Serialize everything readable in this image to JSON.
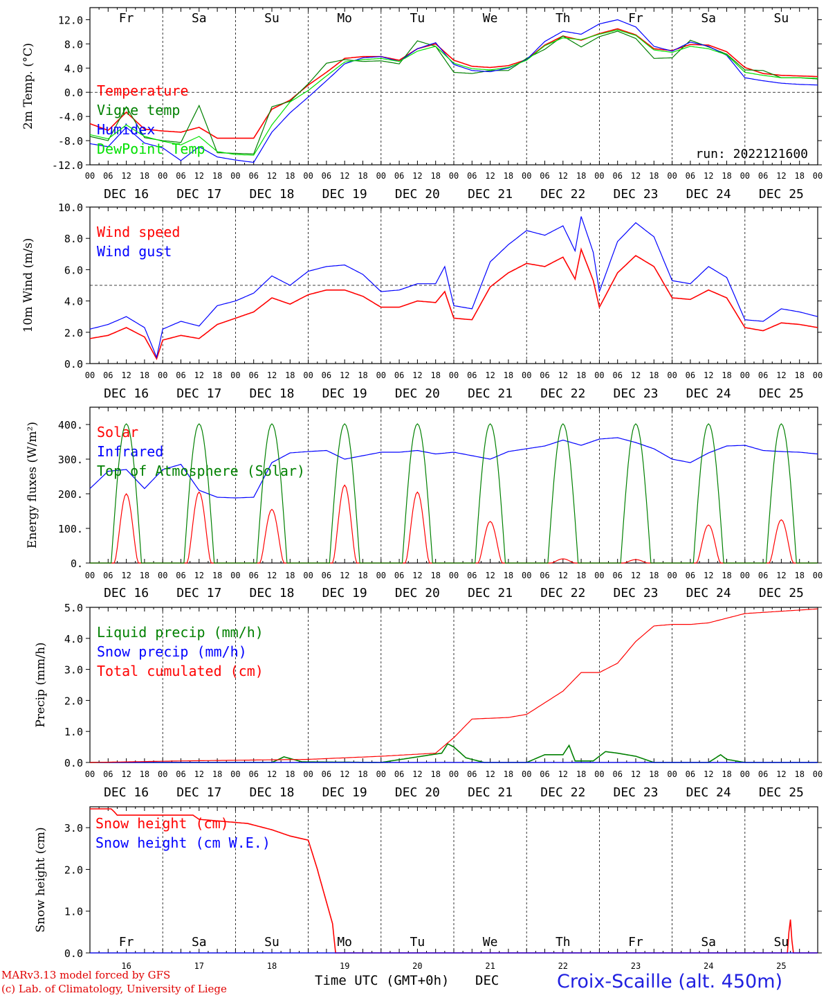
{
  "run_label": "run: 2022121600",
  "weekdays": [
    {
      "label": "Fr",
      "color": "#000000"
    },
    {
      "label": "Sa",
      "color": "#ff0000"
    },
    {
      "label": "Su",
      "color": "#ff0000"
    },
    {
      "label": "Mo",
      "color": "#000000"
    },
    {
      "label": "Tu",
      "color": "#000000"
    },
    {
      "label": "We",
      "color": "#000000"
    },
    {
      "label": "Th",
      "color": "#000000"
    },
    {
      "label": "Fr",
      "color": "#000000"
    },
    {
      "label": "Sa",
      "color": "#ff0000"
    },
    {
      "label": "Su",
      "color": "#ff0000"
    }
  ],
  "day_labels": [
    "DEC 16",
    "DEC 17",
    "DEC 18",
    "DEC 19",
    "DEC 20",
    "DEC 21",
    "DEC 22",
    "DEC 23",
    "DEC 24",
    "DEC 25"
  ],
  "day_numbers": [
    "16",
    "17",
    "18",
    "19",
    "20",
    "21",
    "22",
    "23",
    "24",
    "25"
  ],
  "hour_labels": [
    "00",
    "06",
    "12",
    "18"
  ],
  "footer": {
    "model": "MARv3.13 model forced by GFS",
    "lab": "(c) Lab. of Climatology, University of Liege",
    "xlabel": "Time UTC (GMT+0h)",
    "month": "DEC",
    "station": "Croix-Scaille (alt. 450m)"
  },
  "chart_data": [
    {
      "type": "line",
      "ylabel": "2m Temp. (°C)",
      "ylim": [
        -12,
        14
      ],
      "yticks": [
        "-12.0",
        "-8.0",
        "-4.0",
        "0.0",
        "4.0",
        "8.0",
        "12.0"
      ],
      "reference_line": 0,
      "x_unit": "hours since 2022-12-16 00 UTC",
      "series": [
        {
          "name": "Temperature",
          "color": "#ff0000",
          "x": [
            0,
            6,
            12,
            18,
            24,
            30,
            36,
            42,
            48,
            54,
            60,
            66,
            72,
            78,
            84,
            90,
            96,
            102,
            108,
            114,
            120,
            126,
            132,
            138,
            144,
            150,
            156,
            162,
            168,
            174,
            180,
            186,
            192,
            198,
            204,
            210,
            216,
            222,
            228,
            234,
            240
          ],
          "y": [
            -5.2,
            -6.3,
            -3.3,
            -6.1,
            -6.4,
            -6.6,
            -5.8,
            -7.6,
            -7.6,
            -7.6,
            -2.8,
            -1.3,
            1.2,
            3.3,
            5.6,
            5.9,
            5.9,
            5.3,
            7.2,
            8.0,
            5.3,
            4.3,
            4.1,
            4.4,
            5.4,
            7.8,
            9.3,
            8.6,
            9.7,
            10.5,
            9.5,
            7.2,
            6.9,
            7.9,
            7.8,
            6.7,
            4.1,
            3.1,
            2.8,
            2.7,
            2.6
          ]
        },
        {
          "name": "Vigne temp",
          "color": "#008000",
          "x": [
            0,
            6,
            12,
            18,
            24,
            30,
            36,
            42,
            48,
            54,
            60,
            66,
            72,
            78,
            84,
            90,
            96,
            102,
            108,
            114,
            120,
            126,
            132,
            138,
            144,
            150,
            156,
            162,
            168,
            174,
            180,
            186,
            192,
            198,
            204,
            210,
            216,
            222,
            228,
            234,
            240
          ],
          "y": [
            -7.3,
            -8.0,
            -2.4,
            -7.5,
            -8.0,
            -8.3,
            -2.2,
            -10.0,
            -10.1,
            -10.2,
            -2.4,
            -1.5,
            1.4,
            4.8,
            5.4,
            5.1,
            5.2,
            4.7,
            8.5,
            7.6,
            3.3,
            3.1,
            3.6,
            3.6,
            5.6,
            7.1,
            9.3,
            7.5,
            9.2,
            10.1,
            8.9,
            5.6,
            5.7,
            8.6,
            7.5,
            6.3,
            3.7,
            3.6,
            2.4,
            2.4,
            2.2
          ]
        },
        {
          "name": "Humidex",
          "color": "#0000ff",
          "x": [
            0,
            6,
            12,
            18,
            24,
            30,
            36,
            42,
            48,
            54,
            60,
            66,
            72,
            78,
            84,
            90,
            96,
            102,
            108,
            114,
            120,
            126,
            132,
            138,
            144,
            150,
            156,
            162,
            168,
            174,
            180,
            186,
            192,
            198,
            204,
            210,
            216,
            222,
            228,
            234,
            240
          ],
          "y": [
            -8.5,
            -9.0,
            -5.8,
            -8.4,
            -9.2,
            -11.3,
            -9.0,
            -10.7,
            -11.2,
            -11.6,
            -6.6,
            -3.4,
            -0.8,
            1.9,
            4.7,
            5.7,
            5.9,
            5.1,
            7.2,
            8.2,
            4.6,
            3.6,
            3.4,
            4.0,
            5.4,
            8.4,
            10.1,
            9.6,
            11.3,
            12.0,
            10.8,
            7.6,
            6.8,
            8.3,
            7.6,
            6.1,
            2.4,
            1.9,
            1.5,
            1.3,
            1.2
          ]
        },
        {
          "name": "DewPoint Temp",
          "color": "#00e000",
          "x": [
            0,
            6,
            12,
            18,
            24,
            30,
            36,
            42,
            48,
            54,
            60,
            66,
            72,
            78,
            84,
            90,
            96,
            102,
            108,
            114,
            120,
            126,
            132,
            138,
            144,
            150,
            156,
            162,
            168,
            174,
            180,
            186,
            192,
            198,
            204,
            210,
            216,
            222,
            228,
            234,
            240
          ],
          "y": [
            -7.0,
            -7.7,
            -5.4,
            -7.3,
            -8.1,
            -8.7,
            -7.3,
            -9.8,
            -10.3,
            -10.4,
            -5.4,
            -1.6,
            0.3,
            2.7,
            5.0,
            5.4,
            5.6,
            5.1,
            6.8,
            7.6,
            4.8,
            3.9,
            3.7,
            4.1,
            5.3,
            7.7,
            9.0,
            8.7,
            9.6,
            10.3,
            9.4,
            7.0,
            6.6,
            7.6,
            7.2,
            6.2,
            3.3,
            2.8,
            2.4,
            2.4,
            2.3
          ]
        }
      ]
    },
    {
      "type": "line",
      "ylabel": "10m Wind (m/s)",
      "ylim": [
        0,
        10
      ],
      "yticks": [
        "0.0",
        "2.0",
        "4.0",
        "6.0",
        "8.0",
        "10.0"
      ],
      "reference_line": 5,
      "x_unit": "hours since 2022-12-16 00 UTC",
      "series": [
        {
          "name": "Wind speed",
          "color": "#ff0000",
          "x": [
            0,
            6,
            12,
            18,
            22,
            24,
            30,
            36,
            42,
            48,
            54,
            60,
            66,
            72,
            78,
            84,
            90,
            96,
            102,
            108,
            114,
            117,
            120,
            126,
            132,
            138,
            144,
            150,
            156,
            160,
            162,
            166,
            168,
            174,
            180,
            186,
            192,
            198,
            204,
            210,
            216,
            222,
            228,
            234,
            240
          ],
          "y": [
            1.6,
            1.8,
            2.3,
            1.7,
            0.3,
            1.5,
            1.8,
            1.6,
            2.5,
            2.9,
            3.3,
            4.2,
            3.8,
            4.4,
            4.7,
            4.7,
            4.3,
            3.6,
            3.6,
            4.0,
            3.9,
            4.6,
            2.9,
            2.8,
            4.9,
            5.8,
            6.4,
            6.2,
            6.8,
            5.4,
            7.3,
            5.3,
            3.6,
            5.8,
            6.9,
            6.2,
            4.2,
            4.1,
            4.7,
            4.2,
            2.3,
            2.1,
            2.6,
            2.5,
            2.3
          ]
        },
        {
          "name": "Wind gust",
          "color": "#0000ff",
          "x": [
            0,
            6,
            12,
            18,
            22,
            24,
            30,
            36,
            42,
            48,
            54,
            60,
            66,
            72,
            78,
            84,
            90,
            96,
            102,
            108,
            114,
            117,
            120,
            126,
            132,
            138,
            144,
            150,
            156,
            160,
            162,
            166,
            168,
            174,
            180,
            186,
            192,
            198,
            204,
            210,
            216,
            222,
            228,
            234,
            240
          ],
          "y": [
            2.2,
            2.5,
            3.0,
            2.3,
            0.4,
            2.2,
            2.7,
            2.4,
            3.7,
            4.0,
            4.5,
            5.6,
            5.0,
            5.9,
            6.2,
            6.3,
            5.7,
            4.6,
            4.7,
            5.1,
            5.1,
            6.2,
            3.7,
            3.5,
            6.5,
            7.6,
            8.5,
            8.2,
            8.8,
            7.2,
            9.4,
            7.1,
            4.6,
            7.8,
            9.0,
            8.1,
            5.3,
            5.1,
            6.2,
            5.5,
            2.8,
            2.7,
            3.5,
            3.3,
            3.0
          ]
        }
      ]
    },
    {
      "type": "line",
      "ylabel": "Energy fluxes (W/m²)",
      "ylim": [
        0,
        450
      ],
      "yticks": [
        "0.",
        "100.",
        "200.",
        "300.",
        "400."
      ],
      "x_unit": "hours since 2022-12-16 00 UTC",
      "series": [
        {
          "name": "Solar",
          "color": "#ff0000",
          "daily_peak": [
            200,
            205,
            155,
            225,
            205,
            120,
            12,
            10,
            110,
            125
          ]
        },
        {
          "name": "Infrared",
          "color": "#0000ff",
          "x": [
            0,
            6,
            12,
            18,
            24,
            30,
            36,
            42,
            48,
            54,
            60,
            66,
            72,
            78,
            84,
            90,
            96,
            102,
            108,
            114,
            120,
            126,
            132,
            138,
            144,
            150,
            156,
            162,
            168,
            174,
            180,
            186,
            192,
            198,
            204,
            210,
            216,
            222,
            228,
            234,
            240
          ],
          "y": [
            215,
            265,
            270,
            215,
            270,
            285,
            210,
            190,
            188,
            190,
            290,
            318,
            322,
            325,
            300,
            310,
            320,
            320,
            325,
            315,
            320,
            310,
            300,
            322,
            330,
            338,
            355,
            340,
            358,
            362,
            348,
            330,
            300,
            290,
            318,
            338,
            340,
            325,
            322,
            320,
            315
          ]
        },
        {
          "name": "Top of Atmosphere (Solar)",
          "color": "#008000",
          "daily_peak": [
            402,
            402,
            402,
            402,
            402,
            402,
            402,
            402,
            402,
            402
          ]
        }
      ]
    },
    {
      "type": "line",
      "ylabel": "Precip (mm/h)",
      "ylim": [
        0,
        5
      ],
      "yticks": [
        "0.0",
        "1.0",
        "2.0",
        "3.0",
        "4.0",
        "5.0"
      ],
      "x_unit": "hours since 2022-12-16 00 UTC",
      "series": [
        {
          "name": "Liquid precip (mm/h)",
          "color": "#008000",
          "x": [
            0,
            60,
            64,
            70,
            96,
            116,
            118,
            120,
            124,
            130,
            144,
            150,
            156,
            158,
            160,
            166,
            170,
            174,
            180,
            186,
            192,
            204,
            208,
            210,
            216,
            240
          ],
          "y": [
            0.0,
            0.0,
            0.18,
            0.02,
            0.0,
            0.3,
            0.6,
            0.5,
            0.15,
            0.0,
            0.0,
            0.25,
            0.25,
            0.55,
            0.05,
            0.05,
            0.35,
            0.3,
            0.2,
            0.0,
            0.0,
            0.0,
            0.25,
            0.1,
            0.0,
            0.0
          ]
        },
        {
          "name": "Snow precip (mm/h)",
          "color": "#0000ff",
          "x": [
            0,
            240
          ],
          "y": [
            0.0,
            0.0
          ]
        },
        {
          "name": "Total cumulated (cm)",
          "color": "#ff0000",
          "x": [
            0,
            30,
            72,
            96,
            114,
            120,
            126,
            138,
            144,
            156,
            162,
            168,
            174,
            180,
            186,
            192,
            198,
            204,
            216,
            240
          ],
          "y": [
            0.0,
            0.05,
            0.1,
            0.2,
            0.3,
            0.8,
            1.4,
            1.45,
            1.55,
            2.3,
            2.9,
            2.9,
            3.2,
            3.9,
            4.4,
            4.45,
            4.45,
            4.5,
            4.8,
            4.95
          ]
        }
      ]
    },
    {
      "type": "line",
      "ylabel": "Snow height (cm)",
      "ylim": [
        0,
        3.5
      ],
      "yticks": [
        "0.0",
        "1.0",
        "2.0",
        "3.0"
      ],
      "x_unit": "hours since 2022-12-16 00 UTC",
      "series": [
        {
          "name": "Snow height (cm)",
          "color": "#ff0000",
          "x": [
            0,
            7,
            8,
            9,
            34,
            36,
            52,
            60,
            66,
            72,
            75,
            80,
            81,
            81.2,
            230,
            230.5,
            231,
            231.5,
            232,
            240
          ],
          "y": [
            3.45,
            3.45,
            3.38,
            3.3,
            3.3,
            3.2,
            3.1,
            2.95,
            2.8,
            2.7,
            2.0,
            0.7,
            0.0,
            0.0,
            0.0,
            0.5,
            0.8,
            0.3,
            0.0,
            0.0
          ]
        },
        {
          "name": "Snow height (cm W.E.)",
          "color": "#0000ff",
          "x": [
            0,
            240
          ],
          "y": [
            0.0,
            0.0
          ]
        }
      ]
    }
  ]
}
